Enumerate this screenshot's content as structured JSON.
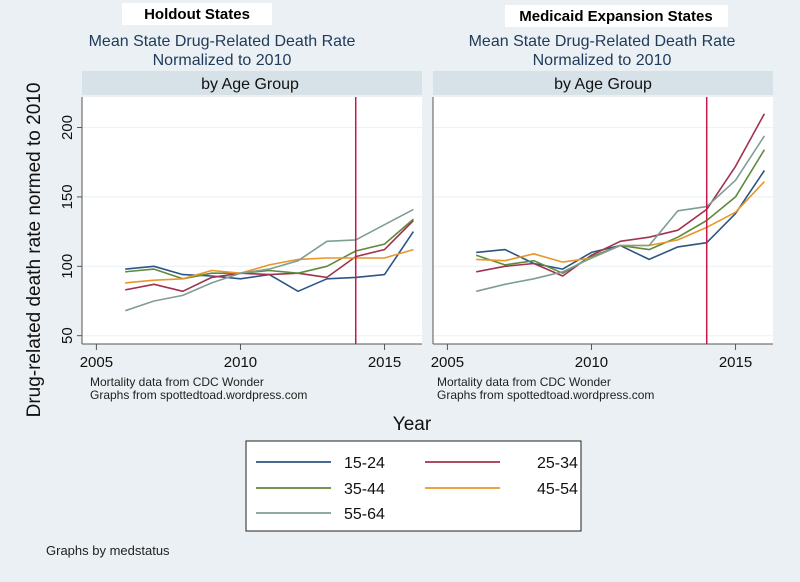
{
  "chart_data": [
    {
      "type": "line",
      "panel_label": "Holdout States",
      "title": "Mean State Drug-Related Death Rate",
      "title_line2": "Normalized to 2010",
      "subtitle": "by Age Group",
      "xlabel": "Year",
      "ylabel": "Drug-related death rate normed to 2010",
      "x": [
        2006,
        2007,
        2008,
        2009,
        2010,
        2011,
        2012,
        2013,
        2014,
        2015,
        2016
      ],
      "xlim": [
        2004.5,
        2016.3
      ],
      "ylim": [
        44,
        222
      ],
      "xticks": [
        2005,
        2010,
        2015
      ],
      "yticks": [
        50,
        100,
        150,
        200
      ],
      "grid": true,
      "reference_line_x": 2014,
      "notes": [
        "Mortality data from CDC Wonder",
        "Graphs from spottedtoad.wordpress.com"
      ],
      "series": [
        {
          "name": "15-24",
          "values": [
            98,
            100,
            94,
            93,
            91,
            94,
            82,
            91,
            92,
            94,
            125
          ]
        },
        {
          "name": "25-34",
          "values": [
            83,
            87,
            82,
            92,
            95,
            94,
            95,
            92,
            107,
            112,
            133
          ]
        },
        {
          "name": "35-44",
          "values": [
            96,
            98,
            91,
            95,
            95,
            97,
            95,
            100,
            111,
            116,
            134
          ]
        },
        {
          "name": "45-54",
          "values": [
            88,
            90,
            91,
            97,
            95,
            101,
            105,
            106,
            106,
            106,
            112
          ]
        },
        {
          "name": "55-64",
          "values": [
            68,
            75,
            79,
            88,
            95,
            98,
            104,
            118,
            119,
            130,
            141
          ]
        }
      ]
    },
    {
      "type": "line",
      "panel_label": "Medicaid Expansion States",
      "title": "Mean State Drug-Related Death Rate",
      "title_line2": "Normalized to 2010",
      "subtitle": "by Age Group",
      "xlabel": "Year",
      "ylabel": "Drug-related death rate normed to 2010",
      "x": [
        2006,
        2007,
        2008,
        2009,
        2010,
        2011,
        2012,
        2013,
        2014,
        2015,
        2016
      ],
      "xlim": [
        2004.5,
        2016.3
      ],
      "ylim": [
        44,
        222
      ],
      "xticks": [
        2005,
        2010,
        2015
      ],
      "yticks": [
        50,
        100,
        150,
        200
      ],
      "grid": true,
      "reference_line_x": 2014,
      "notes": [
        "Mortality data from CDC Wonder",
        "Graphs from spottedtoad.wordpress.com"
      ],
      "series": [
        {
          "name": "15-24",
          "values": [
            110,
            112,
            102,
            98,
            110,
            115,
            105,
            114,
            117,
            138,
            169
          ]
        },
        {
          "name": "25-34",
          "values": [
            96,
            100,
            102,
            93,
            108,
            118,
            121,
            126,
            141,
            172,
            210
          ]
        },
        {
          "name": "35-44",
          "values": [
            108,
            101,
            104,
            95,
            107,
            115,
            112,
            121,
            133,
            150,
            184
          ]
        },
        {
          "name": "45-54",
          "values": [
            105,
            104,
            109,
            103,
            106,
            115,
            115,
            119,
            128,
            139,
            161
          ]
        },
        {
          "name": "55-64",
          "values": [
            82,
            87,
            91,
            96,
            106,
            115,
            115,
            140,
            143,
            162,
            194
          ]
        }
      ]
    }
  ],
  "colors": {
    "15-24": "#2d5585",
    "25-34": "#a0334d",
    "35-44": "#5f8a3c",
    "45-54": "#e8962a",
    "55-64": "#7f9d96",
    "reference_line": "#c8174a",
    "title_text": "#1f3a5a",
    "subtitle_bar": "#d7e2e8"
  },
  "legend": {
    "placement": "bottom-center",
    "items": [
      "15-24",
      "25-34",
      "35-44",
      "45-54",
      "55-64"
    ]
  },
  "shared": {
    "ylabel": "Drug-related death rate normed to 2010",
    "xlabel": "Year",
    "footer": "Graphs by medstatus"
  }
}
